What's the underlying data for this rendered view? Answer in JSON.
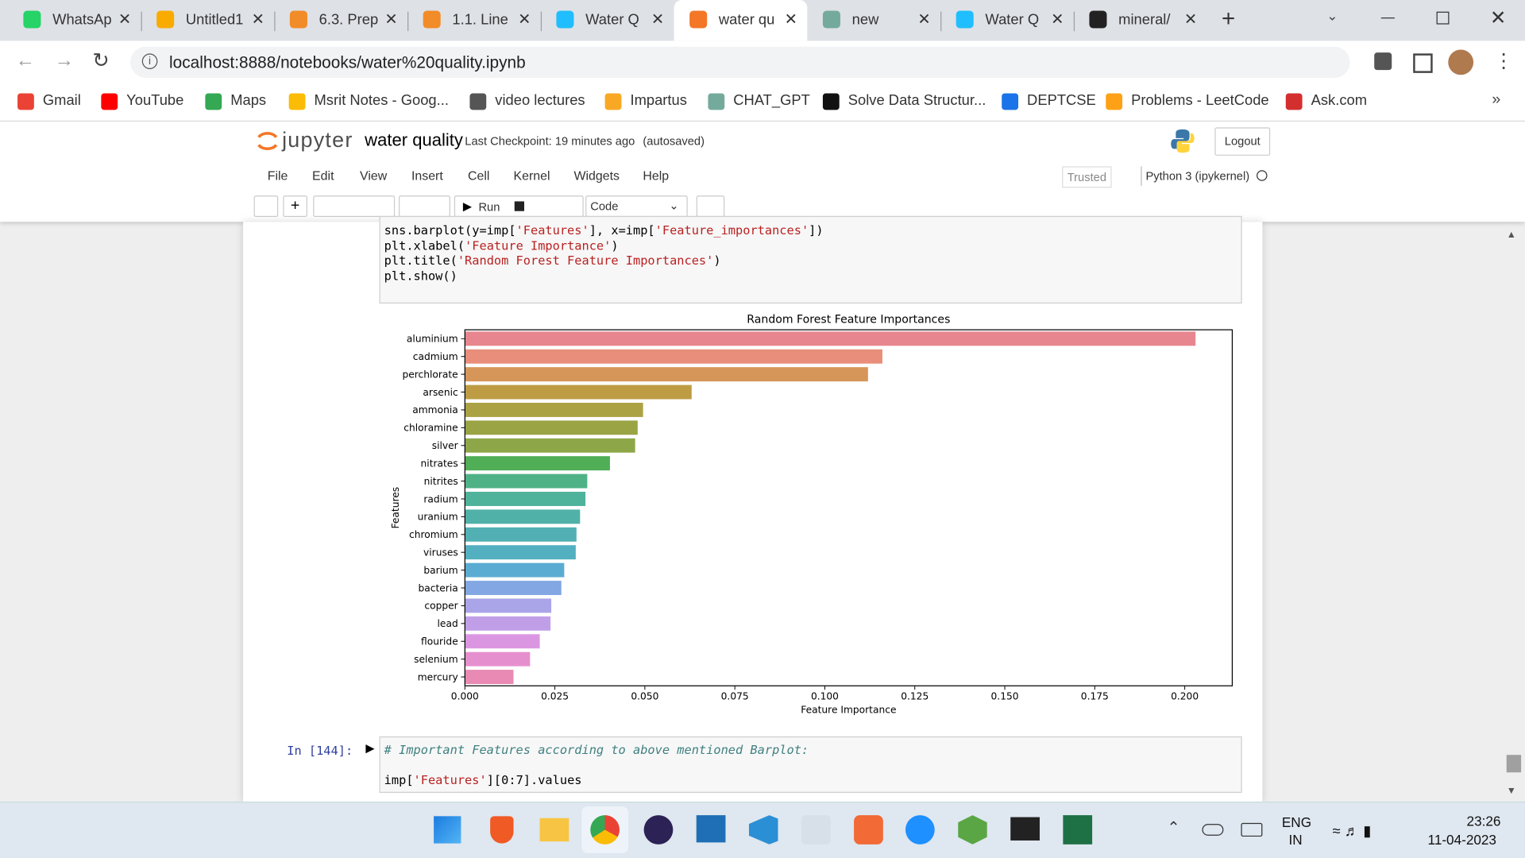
{
  "browser": {
    "tabs": [
      "WhatsAp",
      "Untitled1",
      "6.3. Prep",
      "1.1. Line",
      "Water Q",
      "water qu",
      "new",
      "Water Q",
      "mineral/"
    ],
    "active_tab": 5,
    "url": "localhost:8888/notebooks/water%20quality.ipynb",
    "bookmarks": [
      "Gmail",
      "YouTube",
      "Maps",
      "Msrit Notes - Goog...",
      "video lectures",
      "Impartus",
      "CHAT_GPT",
      "Solve Data Structur...",
      "DEPTCSE",
      "Problems - LeetCode",
      "Ask.com"
    ]
  },
  "notebook": {
    "logo": "jupyter",
    "name": "water quality",
    "checkpoint": "Last Checkpoint: 19 minutes ago",
    "autosave": "(autosaved)",
    "logout": "Logout",
    "menu": [
      "File",
      "Edit",
      "View",
      "Insert",
      "Cell",
      "Kernel",
      "Widgets",
      "Help"
    ],
    "trusted": "Trusted",
    "kernel": "Python 3 (ipykernel)",
    "run": "Run",
    "cell_type": "Code"
  },
  "cells": [
    {
      "lines": [
        [
          {
            "text": "sns.barplot(y=imp[",
            "style": "code"
          },
          {
            "text": "'Features'",
            "style": "string"
          },
          {
            "text": "], x=imp[",
            "style": "code"
          },
          {
            "text": "'Feature_importances'",
            "style": "string"
          },
          {
            "text": "])",
            "style": "code"
          }
        ],
        [
          {
            "text": "plt.xlabel(",
            "style": "code"
          },
          {
            "text": "'Feature Importance'",
            "style": "string"
          },
          {
            "text": ")",
            "style": "code"
          }
        ],
        [
          {
            "text": "plt.title(",
            "style": "code"
          },
          {
            "text": "'Random Forest Feature Importances'",
            "style": "string"
          },
          {
            "text": ")",
            "style": "code"
          }
        ],
        [
          {
            "text": "plt.show()",
            "style": "code"
          }
        ]
      ]
    },
    {
      "prompt": "In [144]:",
      "lines": [
        [
          {
            "text": "# Important Features according to above mentioned Barplot:",
            "style": "comment"
          }
        ],
        [
          {
            "text": "imp[",
            "style": "code"
          },
          {
            "text": "'Features'",
            "style": "string"
          },
          {
            "text": "][0:7].values",
            "style": "code"
          }
        ]
      ]
    }
  ],
  "chart_data": {
    "type": "barh",
    "title": "Random Forest Feature Importances",
    "x_label": "Feature Importance",
    "y_label": "Features",
    "categories": [
      "aluminium",
      "cadmium",
      "perchlorate",
      "arsenic",
      "ammonia",
      "chloramine",
      "silver",
      "nitrates",
      "nitrites",
      "radium",
      "uranium",
      "chromium",
      "viruses",
      "barium",
      "bacteria",
      "copper",
      "lead",
      "flouride",
      "selenium",
      "mercury"
    ],
    "values": [
      0.203,
      0.116,
      0.112,
      0.063,
      0.0495,
      0.048,
      0.0473,
      0.0403,
      0.034,
      0.0335,
      0.032,
      0.031,
      0.0308,
      0.0276,
      0.0268,
      0.024,
      0.0238,
      0.0208,
      0.0181,
      0.0135
    ],
    "colors": [
      "#e7868e",
      "#e88e7a",
      "#d69559",
      "#bd9c43",
      "#aba243",
      "#9aa444",
      "#8da748",
      "#4fae56",
      "#4fb287",
      "#4fb29b",
      "#50b1a8",
      "#52b0b4",
      "#53b0c0",
      "#5aacd2",
      "#82a7e3",
      "#aaa4e8",
      "#c19fe8",
      "#db96e2",
      "#e68fcf",
      "#e88ab4"
    ],
    "xlim": [
      0,
      0.2132
    ],
    "xticks": [
      {
        "value": 0,
        "label": "0.000"
      },
      {
        "value": 0.025,
        "label": "0.025"
      },
      {
        "value": 0.05,
        "label": "0.050"
      },
      {
        "value": 0.075,
        "label": "0.075"
      },
      {
        "value": 0.1,
        "label": "0.100"
      },
      {
        "value": 0.125,
        "label": "0.125"
      },
      {
        "value": 0.15,
        "label": "0.150"
      },
      {
        "value": 0.175,
        "label": "0.175"
      },
      {
        "value": 0.2,
        "label": "0.200"
      }
    ],
    "grid": false
  },
  "taskbar": {
    "lang": "ENG",
    "region": "IN",
    "time": "23:26",
    "date": "11-04-2023"
  }
}
